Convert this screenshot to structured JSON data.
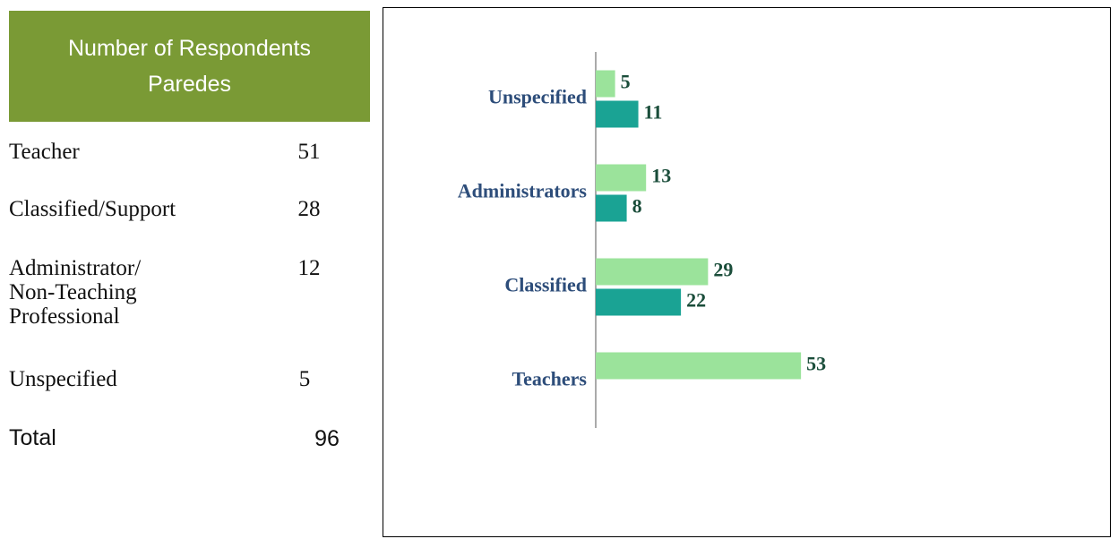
{
  "table": {
    "title": "Number of Respondents Paredes",
    "rows": [
      [
        "Teacher",
        "51"
      ],
      [
        "Classified/Support",
        "28"
      ],
      [
        "Administrator/ Non-Teaching Professional",
        "12"
      ],
      [
        "Unspecified",
        "5"
      ]
    ],
    "total": [
      "Total",
      "96"
    ]
  },
  "chart_data": {
    "type": "bar",
    "orientation": "horizontal",
    "categories": [
      "Unspecified",
      "Administrators",
      "Classified",
      "Teachers"
    ],
    "series": [
      {
        "color": "#9be39b",
        "values": [
          5,
          13,
          29,
          53
        ]
      },
      {
        "color": "#1aa394",
        "values": [
          11,
          8,
          22,
          null
        ]
      }
    ],
    "xlim": [
      0,
      130
    ]
  }
}
